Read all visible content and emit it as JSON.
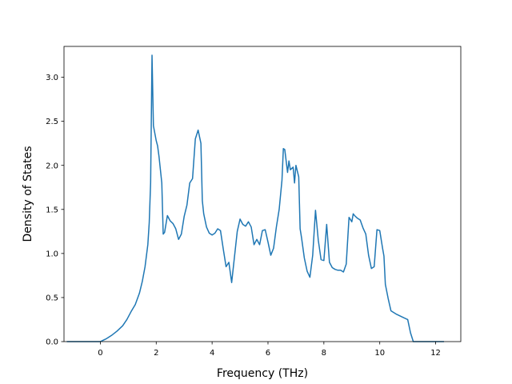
{
  "chart_data": {
    "type": "line",
    "title": "",
    "xlabel": "Frequency (THz)",
    "ylabel": "Density of States",
    "xlim": [
      -1.3,
      12.9
    ],
    "ylim": [
      0.0,
      3.35
    ],
    "xticks": [
      0,
      2,
      4,
      6,
      8,
      10,
      12
    ],
    "yticks": [
      0.0,
      0.5,
      1.0,
      1.5,
      2.0,
      2.5,
      3.0
    ],
    "xtick_labels": [
      "0",
      "2",
      "4",
      "6",
      "8",
      "10",
      "12"
    ],
    "ytick_labels": [
      "0.0",
      "0.5",
      "1.0",
      "1.5",
      "2.0",
      "2.5",
      "3.0"
    ],
    "grid": false,
    "line_color": "#1f77b4",
    "series": [
      {
        "x": [
          -1.2,
          -0.5,
          0.0,
          0.2,
          0.4,
          0.6,
          0.8,
          0.95,
          1.1,
          1.25,
          1.4,
          1.5,
          1.6,
          1.7,
          1.75,
          1.8,
          1.85,
          1.9,
          2.0,
          2.05,
          2.1,
          2.2,
          2.25,
          2.3,
          2.4,
          2.5,
          2.6,
          2.7,
          2.8,
          2.9,
          3.0,
          3.1,
          3.2,
          3.3,
          3.4,
          3.5,
          3.6,
          3.65,
          3.7,
          3.8,
          3.9,
          4.0,
          4.1,
          4.2,
          4.3,
          4.4,
          4.5,
          4.6,
          4.7,
          4.8,
          4.9,
          5.0,
          5.1,
          5.2,
          5.3,
          5.4,
          5.5,
          5.6,
          5.7,
          5.8,
          5.9,
          6.0,
          6.1,
          6.2,
          6.3,
          6.4,
          6.5,
          6.55,
          6.6,
          6.7,
          6.75,
          6.8,
          6.9,
          6.95,
          7.0,
          7.1,
          7.15,
          7.2,
          7.3,
          7.4,
          7.5,
          7.6,
          7.7,
          7.8,
          7.9,
          8.0,
          8.1,
          8.2,
          8.3,
          8.4,
          8.5,
          8.6,
          8.7,
          8.8,
          8.9,
          9.0,
          9.05,
          9.1,
          9.2,
          9.3,
          9.4,
          9.5,
          9.6,
          9.7,
          9.8,
          9.9,
          10.0,
          10.1,
          10.15,
          10.2,
          10.3,
          10.4,
          10.6,
          10.8,
          11.0,
          11.1,
          11.2,
          11.5,
          12.0,
          12.3
        ],
        "y": [
          0.0,
          0.0,
          0.0,
          0.03,
          0.07,
          0.12,
          0.18,
          0.25,
          0.34,
          0.42,
          0.55,
          0.68,
          0.85,
          1.1,
          1.35,
          1.8,
          3.25,
          2.45,
          2.28,
          2.22,
          2.1,
          1.8,
          1.22,
          1.24,
          1.43,
          1.37,
          1.34,
          1.28,
          1.16,
          1.22,
          1.42,
          1.55,
          1.8,
          1.85,
          2.3,
          2.4,
          2.25,
          1.6,
          1.45,
          1.3,
          1.23,
          1.21,
          1.23,
          1.28,
          1.26,
          1.05,
          0.85,
          0.9,
          0.67,
          0.96,
          1.25,
          1.39,
          1.33,
          1.31,
          1.36,
          1.3,
          1.1,
          1.16,
          1.1,
          1.26,
          1.27,
          1.13,
          0.98,
          1.06,
          1.3,
          1.5,
          1.83,
          2.19,
          2.18,
          1.92,
          2.05,
          1.95,
          1.98,
          1.8,
          2.0,
          1.87,
          1.28,
          1.18,
          0.95,
          0.8,
          0.73,
          0.98,
          1.49,
          1.15,
          0.93,
          0.92,
          1.33,
          0.9,
          0.84,
          0.82,
          0.81,
          0.81,
          0.79,
          0.88,
          1.41,
          1.36,
          1.45,
          1.43,
          1.4,
          1.38,
          1.29,
          1.22,
          0.98,
          0.83,
          0.85,
          1.27,
          1.26,
          1.06,
          0.97,
          0.65,
          0.49,
          0.35,
          0.31,
          0.28,
          0.25,
          0.1,
          0.0,
          0.0,
          0.0,
          0.0
        ]
      }
    ]
  }
}
